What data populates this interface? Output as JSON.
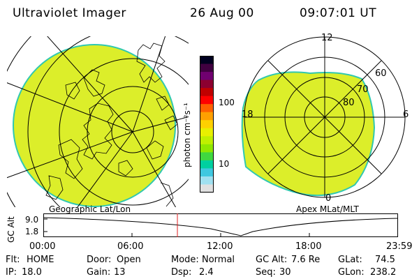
{
  "header": {
    "instrument": "Ultraviolet Imager",
    "date": "26 Aug 00",
    "time": "09:07:01 UT"
  },
  "left_panel": {
    "caption": "Geographic Lat/Lon"
  },
  "right_panel": {
    "caption": "Apex MLat/MLT",
    "mlt_labels": {
      "top": "12",
      "left": "18",
      "right": "6",
      "bottom": "0"
    },
    "lat_labels": [
      "60",
      "70",
      "80"
    ]
  },
  "colorbar": {
    "unit_label": "photon cm⁻²s⁻¹",
    "tick_labels": [
      "100",
      "10"
    ],
    "colors": [
      "#000020",
      "#400040",
      "#700070",
      "#8c0030",
      "#c00000",
      "#ff0000",
      "#ff6000",
      "#ffa000",
      "#ffd000",
      "#e8f000",
      "#c0f000",
      "#90e800",
      "#40d840",
      "#00d0a0",
      "#40c8e0",
      "#a0e0f0",
      "#e0e0e0"
    ]
  },
  "timeline": {
    "y_axis_label": "GC Alt",
    "y_ticks": [
      "9.0",
      "1.8"
    ],
    "x_ticks": [
      "00:00",
      "06:00",
      "12:00",
      "18:00",
      "23:59"
    ],
    "current_time_fraction": 0.378
  },
  "status": {
    "row1": [
      {
        "label": "Flt:",
        "value": "HOME"
      },
      {
        "label": "Door:",
        "value": "Open"
      },
      {
        "label": "Mode:",
        "value": "Normal"
      },
      {
        "label": "GC Alt:",
        "value": "7.6 Re"
      },
      {
        "label": "GLat:",
        "value": "74.5"
      }
    ],
    "row2": [
      {
        "label": "IP:",
        "value": "18.0"
      },
      {
        "label": "Gain:",
        "value": "13"
      },
      {
        "label": "Dsp:",
        "value": "2.4"
      },
      {
        "label": "Seq:",
        "value": "30"
      },
      {
        "label": "GLon:",
        "value": "238.2"
      }
    ]
  }
}
